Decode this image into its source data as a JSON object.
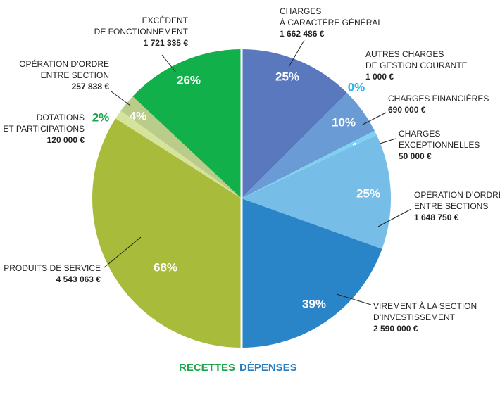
{
  "chart_data": {
    "type": "pie",
    "series": [
      {
        "name": "RECETTES",
        "color": "#1aa64a",
        "labels": [
          [
            "PRODUITS DE SERVICE"
          ],
          [
            "DOTATIONS",
            "ET PARTICIPATIONS"
          ],
          [
            "OPÉRATION D’ORDRE",
            "ENTRE SECTION"
          ],
          [
            "EXCÉDENT",
            "DE FONCTIONNEMENT"
          ]
        ],
        "values": [
          68,
          2,
          4,
          26
        ],
        "value_labels": [
          "68%",
          "2%",
          "4%",
          "26%"
        ],
        "amounts": [
          4543063,
          120000,
          257838,
          1721335
        ],
        "amount_labels": [
          "4 543 063 €",
          "120 000 €",
          "257 838 €",
          "1 721 335 €"
        ],
        "colors": [
          "#a9bb3a",
          "#d6e39a",
          "#b9cc8a",
          "#12b04a"
        ]
      },
      {
        "name": "DÉPENSES",
        "color": "#2a7ec2",
        "labels": [
          [
            "CHARGES",
            "À CARACTÈRE GÉNÉRAL"
          ],
          [
            "AUTRES CHARGES",
            "DE GESTION COURANTE"
          ],
          [
            "CHARGES FINANCIÈRES"
          ],
          [
            "CHARGES",
            "EXCEPTIONNELLES"
          ],
          [
            "OPÉRATION D’ORDRE",
            "ENTRE SECTIONS"
          ],
          [
            "VIREMENT À LA SECTION",
            "D’INVESTISSEMENT"
          ]
        ],
        "values": [
          25,
          0,
          10,
          1,
          25,
          39
        ],
        "value_labels": [
          "25%",
          "0%",
          "10%",
          "1%",
          "25%",
          "39%"
        ],
        "amounts": [
          1662486,
          1000,
          690000,
          50000,
          1648750,
          2590000
        ],
        "amount_labels": [
          "1 662 486 €",
          "1 000 €",
          "690 000 €",
          "50 000 €",
          "1 648 750 €",
          "2 590 000 €"
        ],
        "colors": [
          "#5a78be",
          "#29b6e8",
          "#6a9bd4",
          "#7fd0f2",
          "#76bde8",
          "#2a84c8"
        ]
      }
    ]
  }
}
